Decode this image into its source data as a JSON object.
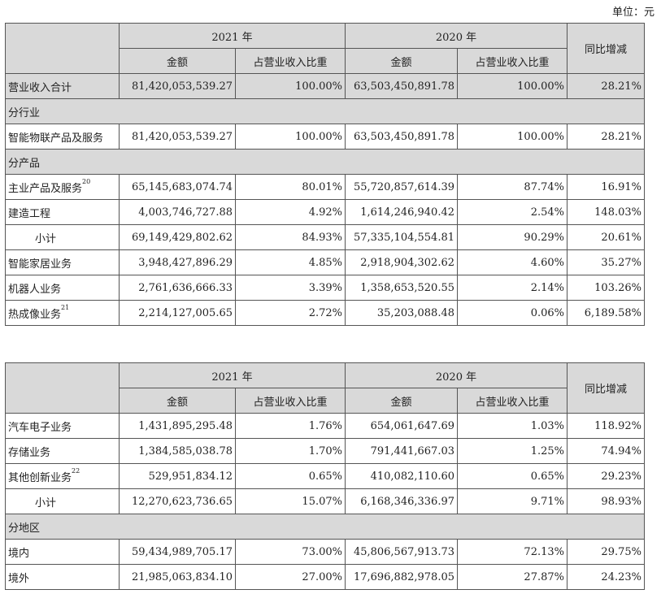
{
  "unit_label": "单位：元",
  "header": {
    "year_2021": "2021 年",
    "year_2020": "2020 年",
    "yoy": "同比增减",
    "amount": "金额",
    "ratio": "占营业收入比重"
  },
  "table1": {
    "total": {
      "name": "营业收入合计",
      "a21": "81,420,053,539.27",
      "r21": "100.00%",
      "a20": "63,503,450,891.78",
      "r20": "100.00%",
      "yoy": "28.21%"
    },
    "sec_industry": "分行业",
    "industry": {
      "name": "智能物联产品及服务",
      "a21": "81,420,053,539.27",
      "r21": "100.00%",
      "a20": "63,503,450,891.78",
      "r20": "100.00%",
      "yoy": "28.21%"
    },
    "sec_product": "分产品",
    "rows": [
      {
        "name": "主业产品及服务",
        "sup": "20",
        "a21": "65,145,683,074.74",
        "r21": "80.01%",
        "a20": "55,720,857,614.39",
        "r20": "87.74%",
        "yoy": "16.91%"
      },
      {
        "name": "建造工程",
        "sup": "",
        "a21": "4,003,746,727.88",
        "r21": "4.92%",
        "a20": "1,614,246,940.42",
        "r20": "2.54%",
        "yoy": "148.03%"
      },
      {
        "name": "小计",
        "sup": "",
        "a21": "69,149,429,802.62",
        "r21": "84.93%",
        "a20": "57,335,104,554.81",
        "r20": "90.29%",
        "yoy": "20.61%"
      },
      {
        "name": "智能家居业务",
        "sup": "",
        "a21": "3,948,427,896.29",
        "r21": "4.85%",
        "a20": "2,918,904,302.62",
        "r20": "4.60%",
        "yoy": "35.27%"
      },
      {
        "name": "机器人业务",
        "sup": "",
        "a21": "2,761,636,666.33",
        "r21": "3.39%",
        "a20": "1,358,653,520.55",
        "r20": "2.14%",
        "yoy": "103.26%"
      },
      {
        "name": "热成像业务",
        "sup": "21",
        "a21": "2,214,127,005.65",
        "r21": "2.72%",
        "a20": "35,203,088.48",
        "r20": "0.06%",
        "yoy": "6,189.58%"
      }
    ]
  },
  "table2": {
    "rows": [
      {
        "name": "汽车电子业务",
        "sup": "",
        "a21": "1,431,895,295.48",
        "r21": "1.76%",
        "a20": "654,061,647.69",
        "r20": "1.03%",
        "yoy": "118.92%"
      },
      {
        "name": "存储业务",
        "sup": "",
        "a21": "1,384,585,038.78",
        "r21": "1.70%",
        "a20": "791,441,667.03",
        "r20": "1.25%",
        "yoy": "74.94%"
      },
      {
        "name": "其他创新业务",
        "sup": "22",
        "a21": "529,951,834.12",
        "r21": "0.65%",
        "a20": "410,082,110.60",
        "r20": "0.65%",
        "yoy": "29.23%"
      },
      {
        "name": "小计",
        "sup": "",
        "a21": "12,270,623,736.65",
        "r21": "15.07%",
        "a20": "6,168,346,336.97",
        "r20": "9.71%",
        "yoy": "98.93%"
      }
    ],
    "sec_region": "分地区",
    "region_rows": [
      {
        "name": "境内",
        "sup": "",
        "a21": "59,434,989,705.17",
        "r21": "73.00%",
        "a20": "45,806,567,913.73",
        "r20": "72.13%",
        "yoy": "29.75%"
      },
      {
        "name": "境外",
        "sup": "",
        "a21": "21,985,063,834.10",
        "r21": "27.00%",
        "a20": "17,696,882,978.05",
        "r20": "27.87%",
        "yoy": "24.23%"
      }
    ]
  }
}
